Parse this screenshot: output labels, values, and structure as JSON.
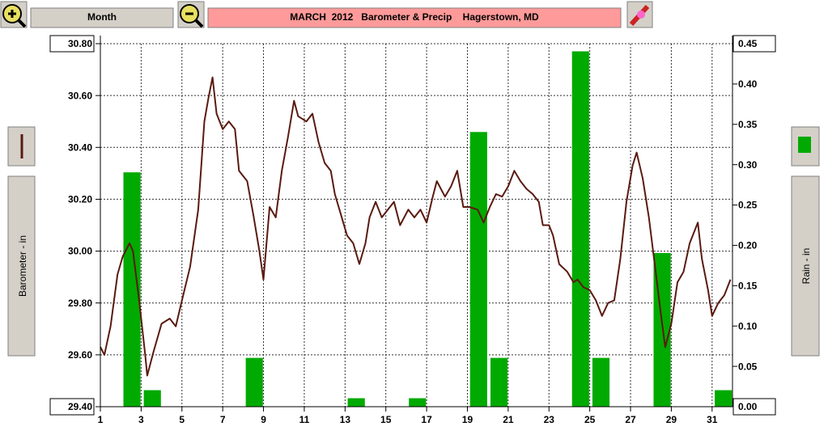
{
  "toolbar": {
    "period_button": "Month"
  },
  "chart_data": {
    "type": "combo",
    "title": "MARCH  2012   Barometer & Precip    Hagerstown, MD",
    "xlim": [
      1,
      32
    ],
    "xticks": [
      1,
      3,
      5,
      7,
      9,
      11,
      13,
      15,
      17,
      19,
      21,
      23,
      25,
      27,
      29,
      31
    ],
    "ylim": [
      29.4,
      30.8
    ],
    "yticks": [
      {
        "value": 29.4,
        "label": "29.40"
      },
      {
        "value": 29.6,
        "label": "29.60"
      },
      {
        "value": 29.8,
        "label": "29.80"
      },
      {
        "value": 30.0,
        "label": "30.00"
      },
      {
        "value": 30.2,
        "label": "30.20"
      },
      {
        "value": 30.4,
        "label": "30.40"
      },
      {
        "value": 30.6,
        "label": "30.60"
      },
      {
        "value": 30.8,
        "label": "30.80"
      }
    ],
    "y2lim": [
      0,
      0.45
    ],
    "y2ticks": [
      {
        "value": 0,
        "label": "0.00"
      },
      {
        "value": 0.05,
        "label": "0.05"
      },
      {
        "value": 0.1,
        "label": "0.10"
      },
      {
        "value": 0.15,
        "label": "0.15"
      },
      {
        "value": 0.2,
        "label": "0.20"
      },
      {
        "value": 0.25,
        "label": "0.25"
      },
      {
        "value": 0.3,
        "label": "0.30"
      },
      {
        "value": 0.35,
        "label": "0.35"
      },
      {
        "value": 0.4,
        "label": "0.40"
      },
      {
        "value": 0.45,
        "label": "0.45"
      }
    ],
    "grid": true,
    "series": [
      {
        "name": "Barometer - in",
        "type": "line",
        "color": "#5a1a10",
        "x": [
          1.0,
          1.2,
          1.5,
          1.84,
          2.1,
          2.43,
          2.6,
          2.9,
          3.2,
          3.3,
          3.6,
          4.0,
          4.4,
          4.7,
          5.0,
          5.4,
          5.8,
          6.1,
          6.3,
          6.5,
          6.7,
          7.0,
          7.3,
          7.6,
          7.8,
          8.2,
          8.5,
          8.8,
          9.0,
          9.3,
          9.6,
          9.9,
          10.2,
          10.5,
          10.7,
          11.1,
          11.4,
          11.7,
          12.0,
          12.3,
          12.5,
          12.8,
          13.1,
          13.4,
          13.7,
          14.0,
          14.2,
          14.5,
          14.8,
          15.1,
          15.4,
          15.7,
          16.1,
          16.4,
          16.7,
          17.0,
          17.3,
          17.5,
          17.9,
          18.2,
          18.5,
          18.8,
          19.1,
          19.5,
          19.8,
          20.1,
          20.4,
          20.7,
          21.0,
          21.3,
          21.6,
          21.9,
          22.2,
          22.5,
          22.7,
          23.0,
          23.2,
          23.5,
          23.9,
          24.2,
          24.4,
          24.7,
          25.0,
          25.3,
          25.6,
          25.9,
          26.2,
          26.5,
          26.8,
          27.1,
          27.3,
          27.6,
          27.9,
          28.2,
          28.5,
          28.7,
          29.0,
          29.3,
          29.6,
          29.9,
          30.3,
          30.5,
          30.8,
          31.0,
          31.3,
          31.6,
          31.9
        ],
        "values": [
          29.63,
          29.6,
          29.71,
          29.91,
          29.98,
          30.03,
          30.0,
          29.81,
          29.6,
          29.52,
          29.61,
          29.72,
          29.74,
          29.71,
          29.81,
          29.94,
          30.16,
          30.5,
          30.59,
          30.67,
          30.53,
          30.47,
          30.5,
          30.47,
          30.31,
          30.27,
          30.14,
          30.0,
          29.89,
          30.17,
          30.13,
          30.31,
          30.44,
          30.58,
          30.52,
          30.5,
          30.53,
          30.42,
          30.34,
          30.31,
          30.22,
          30.14,
          30.06,
          30.03,
          29.95,
          30.03,
          30.13,
          30.19,
          30.13,
          30.16,
          30.19,
          30.1,
          30.16,
          30.13,
          30.16,
          30.11,
          30.21,
          30.27,
          30.21,
          30.25,
          30.31,
          30.17,
          30.17,
          30.16,
          30.11,
          30.17,
          30.22,
          30.21,
          30.25,
          30.31,
          30.27,
          30.24,
          30.22,
          30.19,
          30.1,
          30.1,
          30.06,
          29.95,
          29.92,
          29.88,
          29.89,
          29.86,
          29.85,
          29.81,
          29.75,
          29.8,
          29.81,
          29.97,
          30.19,
          30.33,
          30.38,
          30.28,
          30.13,
          29.94,
          29.75,
          29.63,
          29.72,
          29.88,
          29.92,
          30.03,
          30.11,
          29.97,
          29.85,
          29.75,
          29.8,
          29.83,
          29.89
        ]
      },
      {
        "name": "Rain - in",
        "type": "bar",
        "axis": "y2",
        "color": "#00aa00",
        "x": [
          1,
          2,
          3,
          4,
          5,
          6,
          7,
          8,
          9,
          10,
          11,
          12,
          13,
          14,
          15,
          16,
          17,
          18,
          19,
          20,
          21,
          22,
          23,
          24,
          25,
          26,
          27,
          28,
          29,
          30,
          31
        ],
        "values": [
          0,
          0.29,
          0.02,
          0,
          0,
          0,
          0,
          0.06,
          0,
          0,
          0,
          0,
          0.01,
          0,
          0,
          0.01,
          0,
          0,
          0.34,
          0.06,
          0,
          0,
          0,
          0.44,
          0.06,
          0,
          0,
          0.19,
          0,
          0,
          0.02
        ]
      }
    ]
  }
}
